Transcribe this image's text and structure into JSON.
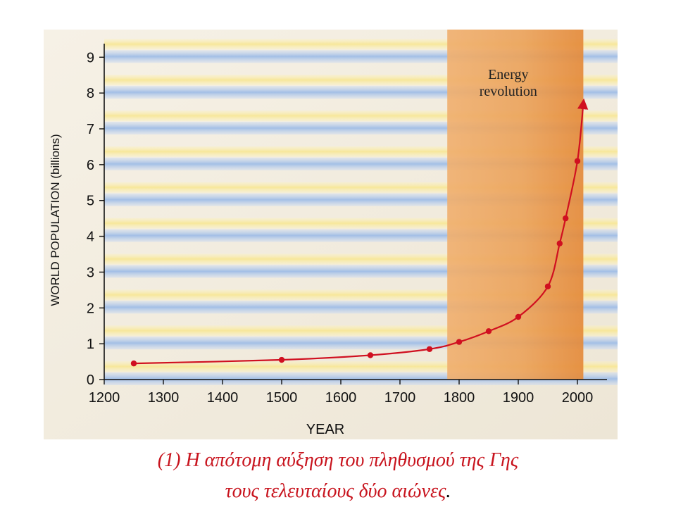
{
  "chart_data": {
    "type": "line",
    "xlabel": "YEAR",
    "ylabel": "WORLD POPULATION (billions)",
    "xlim": [
      1200,
      2050
    ],
    "ylim": [
      0,
      9.3
    ],
    "x_ticks": [
      "1200",
      "1300",
      "1400",
      "1500",
      "1600",
      "1700",
      "1800",
      "1900",
      "2000"
    ],
    "y_ticks": [
      "0",
      "1",
      "2",
      "3",
      "4",
      "5",
      "6",
      "7",
      "8",
      "9"
    ],
    "series": [
      {
        "x": [
          1250,
          1500,
          1650,
          1750,
          1800,
          1850,
          1900,
          1950,
          1970,
          1980,
          2000
        ],
        "y": [
          0.45,
          0.55,
          0.68,
          0.85,
          1.05,
          1.35,
          1.75,
          2.6,
          3.8,
          4.5,
          6.1
        ],
        "color": "#d01020"
      }
    ],
    "curve_end": {
      "x": 2010,
      "y": 7.7
    },
    "shaded_region": {
      "x_start": 1780,
      "x_end": 2010,
      "label_line1": "Energy",
      "label_line2": "revolution"
    },
    "band_colors": [
      "#f9eaa0",
      "#a9c4e6"
    ],
    "grid": false
  },
  "caption": {
    "line1": "(1) Η απότομη αύξηση του πληθυσμού της Γης",
    "line2": "τους τελευταίους δύο αιώνες",
    "end_mark": "."
  }
}
